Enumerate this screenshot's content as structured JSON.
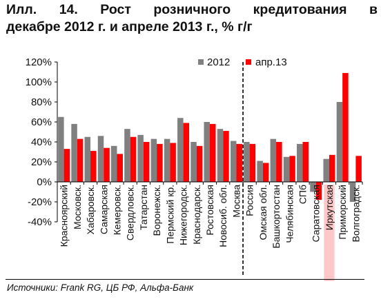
{
  "title": {
    "line1_words": [
      "Илл.",
      "14.",
      "Рост",
      "розничного",
      "кредитования",
      "в"
    ],
    "line2": "декабре 2012 г. и апреле 2013 г., % г/г"
  },
  "source": "Источники: Frank RG, ЦБ РФ, Альфа-Банк",
  "colors": {
    "series_2012": "#808080",
    "series_apr13": "#ff0000",
    "highlight_bg": "#ffc8c8"
  },
  "chart_data": {
    "type": "bar",
    "categories": [
      "Красноярский",
      "Московск.",
      "Хабаровск.",
      "Самарская",
      "Кемеровск.",
      "Свердловск.",
      "Татарстан",
      "Воронежск.",
      "Пермский кр.",
      "Нижегородск.",
      "Краснодарск.",
      "Ростовская",
      "Новосиб. обл.",
      "Москва",
      "Россия",
      "Омская обл.",
      "Башкортостан",
      "Челябинская",
      "СПб",
      "Саратовская",
      "Иркутская",
      "Приморский",
      "Волгоградск."
    ],
    "series": [
      {
        "name": "2012",
        "values": [
          65,
          58,
          45,
          46,
          36,
          53,
          47,
          43,
          43,
          64,
          40,
          60,
          53,
          41,
          40,
          21,
          43,
          25,
          38,
          -10,
          23,
          80,
          -20
        ]
      },
      {
        "name": "апр.13",
        "values": [
          33,
          43,
          31,
          34,
          28,
          45,
          40,
          38,
          39,
          59,
          36,
          58,
          51,
          38,
          38,
          19,
          40,
          26,
          40,
          -18,
          27,
          109,
          26
        ]
      }
    ],
    "ylim": [
      -40,
      120
    ],
    "yticks": [
      "-40%",
      "-20%",
      "0%",
      "20%",
      "40%",
      "60%",
      "80%",
      "100%",
      "120%"
    ],
    "ytick_values": [
      -40,
      -20,
      0,
      20,
      40,
      60,
      80,
      100,
      120
    ],
    "legend_position": "top-right",
    "divider_after_category": "Москва",
    "highlighted_category": "Иркутская"
  }
}
